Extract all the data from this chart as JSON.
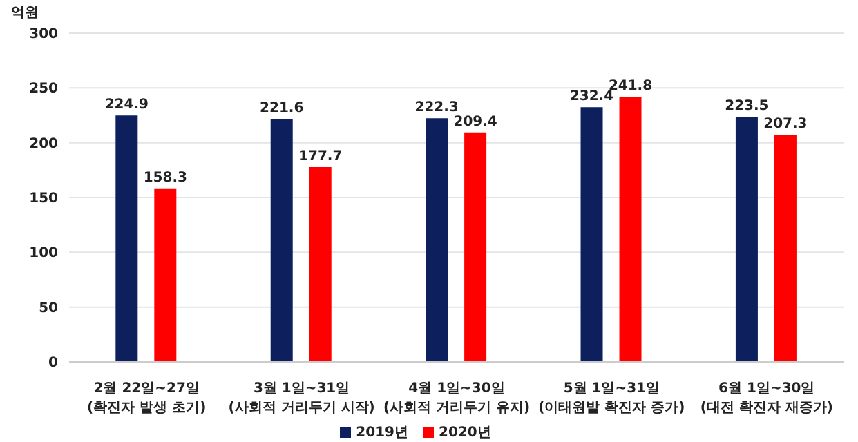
{
  "chart_data": {
    "type": "bar",
    "ylabel": "억원",
    "categories": [
      "2월 22일~27일\n(확진자 발생 초기)",
      "3월 1일~31일\n(사회적 거리두기 시작)",
      "4월 1일~30일\n(사회적 거리두기 유지)",
      "5월 1일~31일\n(이태원발 확진자 증가)",
      "6월 1일~30일\n(대전 확진자 재증가)"
    ],
    "series": [
      {
        "name": "2019년",
        "color": "#0d1f5c",
        "values": [
          224.9,
          221.6,
          222.3,
          232.4,
          223.5
        ]
      },
      {
        "name": "2020년",
        "color": "#ff0000",
        "values": [
          158.3,
          177.7,
          209.4,
          241.8,
          207.3
        ]
      }
    ],
    "ylim": [
      0,
      300
    ],
    "yticks": [
      0,
      50,
      100,
      150,
      200,
      250,
      300
    ],
    "grid": "y",
    "legend": "bottom",
    "data_labels": true
  }
}
